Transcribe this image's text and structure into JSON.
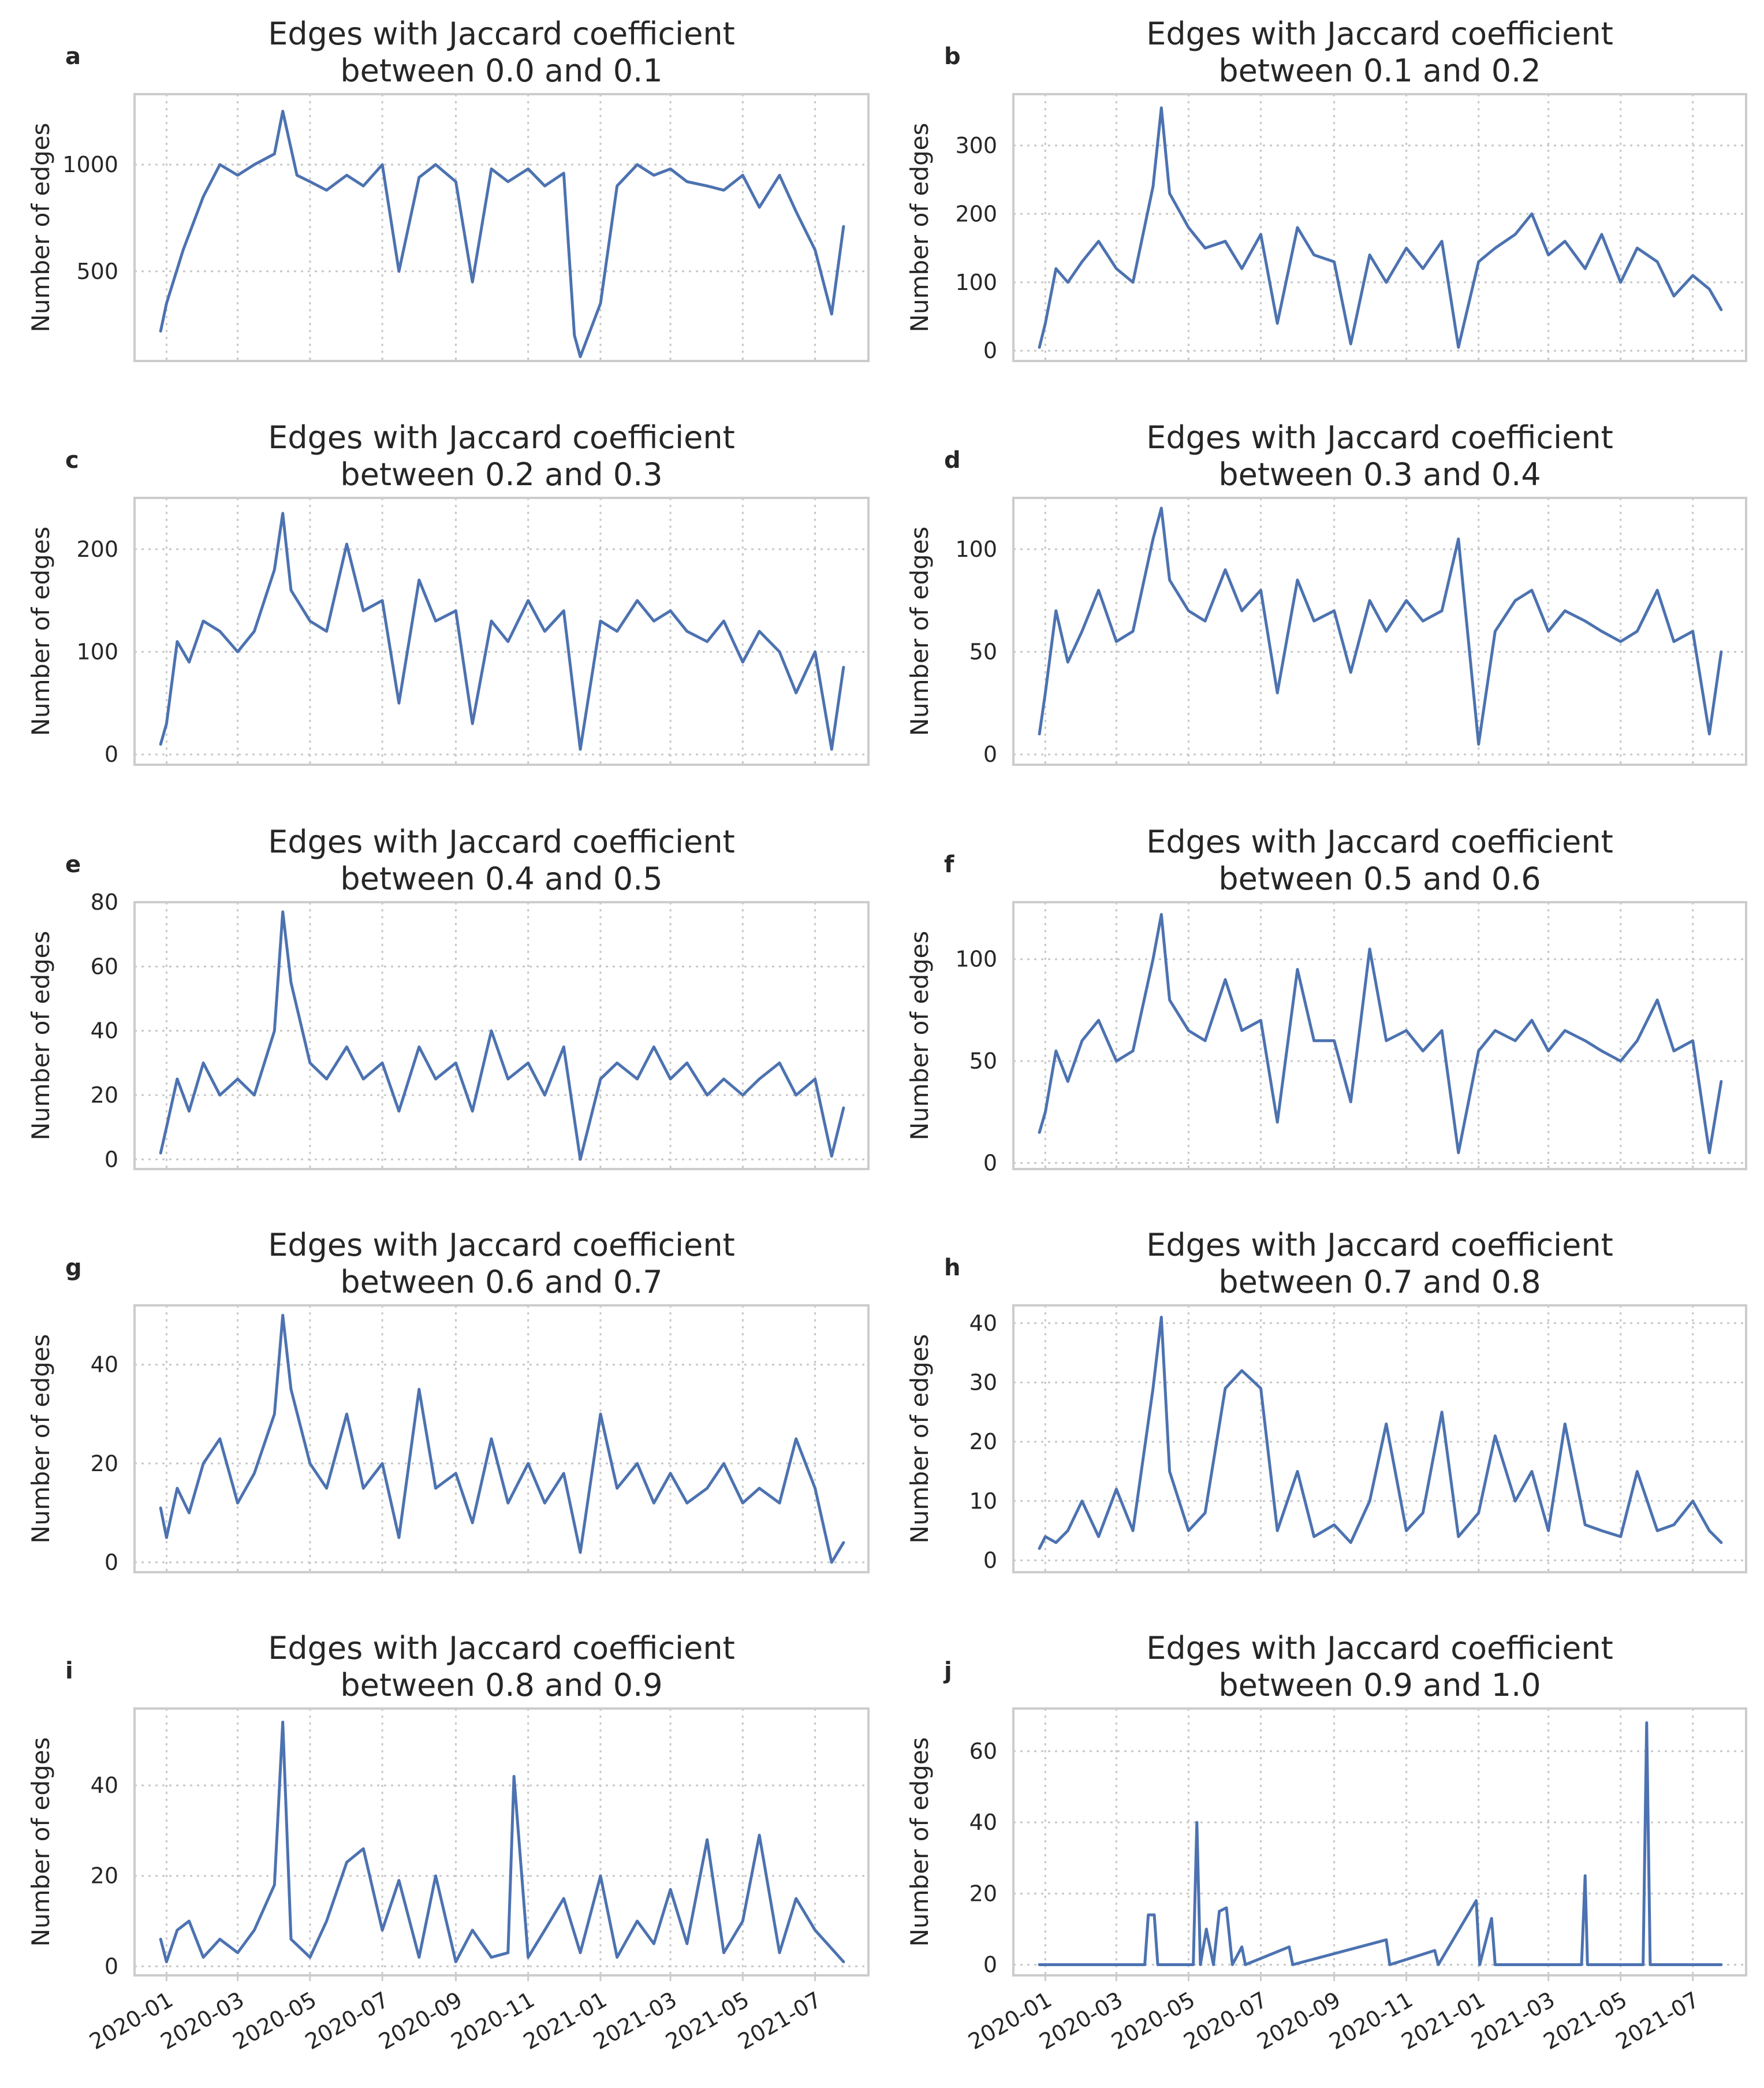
{
  "chart_data": [
    {
      "panel": "a",
      "type": "line",
      "title": [
        "Edges with Jaccard coefficient",
        "between 0.0 and 0.1"
      ],
      "ylabel": "Number of edges",
      "ylim": [
        80,
        1330
      ],
      "yticks": [
        500,
        1000
      ],
      "x": [
        "2019-12-27",
        "2020-01-01",
        "2020-01-15",
        "2020-02-01",
        "2020-02-15",
        "2020-03-01",
        "2020-03-15",
        "2020-04-01",
        "2020-04-08",
        "2020-04-20",
        "2020-05-01",
        "2020-05-15",
        "2020-06-01",
        "2020-06-15",
        "2020-07-01",
        "2020-07-15",
        "2020-08-01",
        "2020-08-15",
        "2020-09-01",
        "2020-09-15",
        "2020-10-01",
        "2020-10-15",
        "2020-11-01",
        "2020-11-15",
        "2020-12-01",
        "2020-12-10",
        "2020-12-15",
        "2021-01-01",
        "2021-01-15",
        "2021-02-01",
        "2021-02-15",
        "2021-03-01",
        "2021-03-15",
        "2021-04-01",
        "2021-04-15",
        "2021-05-01",
        "2021-05-15",
        "2021-06-01",
        "2021-06-15",
        "2021-07-01",
        "2021-07-15",
        "2021-07-25"
      ],
      "values": [
        220,
        350,
        600,
        850,
        1000,
        950,
        1000,
        1050,
        1250,
        950,
        920,
        880,
        950,
        900,
        1000,
        500,
        940,
        1000,
        920,
        450,
        980,
        920,
        980,
        900,
        960,
        200,
        100,
        350,
        900,
        1000,
        950,
        980,
        920,
        900,
        880,
        950,
        800,
        950,
        780,
        600,
        300,
        710
      ]
    },
    {
      "panel": "b",
      "type": "line",
      "title": [
        "Edges with Jaccard coefficient",
        "between 0.1 and 0.2"
      ],
      "ylabel": "Number of edges",
      "ylim": [
        -15,
        375
      ],
      "yticks": [
        0,
        100,
        200,
        300
      ],
      "x": [
        "2019-12-27",
        "2020-01-01",
        "2020-01-10",
        "2020-01-20",
        "2020-02-01",
        "2020-02-15",
        "2020-03-01",
        "2020-03-15",
        "2020-04-01",
        "2020-04-08",
        "2020-04-15",
        "2020-05-01",
        "2020-05-15",
        "2020-06-01",
        "2020-06-15",
        "2020-07-01",
        "2020-07-15",
        "2020-08-01",
        "2020-08-15",
        "2020-09-01",
        "2020-09-15",
        "2020-10-01",
        "2020-10-15",
        "2020-11-01",
        "2020-11-15",
        "2020-12-01",
        "2020-12-15",
        "2021-01-01",
        "2021-01-15",
        "2021-02-01",
        "2021-02-15",
        "2021-03-01",
        "2021-03-15",
        "2021-04-01",
        "2021-04-15",
        "2021-05-01",
        "2021-05-15",
        "2021-06-01",
        "2021-06-15",
        "2021-07-01",
        "2021-07-15",
        "2021-07-25"
      ],
      "values": [
        5,
        40,
        120,
        100,
        130,
        160,
        120,
        100,
        240,
        355,
        230,
        180,
        150,
        160,
        120,
        170,
        40,
        180,
        140,
        130,
        10,
        140,
        100,
        150,
        120,
        160,
        5,
        130,
        150,
        170,
        200,
        140,
        160,
        120,
        170,
        100,
        150,
        130,
        80,
        110,
        90,
        60
      ]
    },
    {
      "panel": "c",
      "type": "line",
      "title": [
        "Edges with Jaccard coefficient",
        "between 0.2 and 0.3"
      ],
      "ylabel": "Number of edges",
      "ylim": [
        -10,
        250
      ],
      "yticks": [
        0,
        100,
        200
      ],
      "x": [
        "2019-12-27",
        "2020-01-01",
        "2020-01-10",
        "2020-01-20",
        "2020-02-01",
        "2020-02-15",
        "2020-03-01",
        "2020-03-15",
        "2020-04-01",
        "2020-04-08",
        "2020-04-15",
        "2020-05-01",
        "2020-05-15",
        "2020-06-01",
        "2020-06-15",
        "2020-07-01",
        "2020-07-15",
        "2020-08-01",
        "2020-08-15",
        "2020-09-01",
        "2020-09-15",
        "2020-10-01",
        "2020-10-15",
        "2020-11-01",
        "2020-11-15",
        "2020-12-01",
        "2020-12-15",
        "2021-01-01",
        "2021-01-15",
        "2021-02-01",
        "2021-02-15",
        "2021-03-01",
        "2021-03-15",
        "2021-04-01",
        "2021-04-15",
        "2021-05-01",
        "2021-05-15",
        "2021-06-01",
        "2021-06-15",
        "2021-07-01",
        "2021-07-15",
        "2021-07-25"
      ],
      "values": [
        10,
        30,
        110,
        90,
        130,
        120,
        100,
        120,
        180,
        235,
        160,
        130,
        120,
        205,
        140,
        150,
        50,
        170,
        130,
        140,
        30,
        130,
        110,
        150,
        120,
        140,
        5,
        130,
        120,
        150,
        130,
        140,
        120,
        110,
        130,
        90,
        120,
        100,
        60,
        100,
        5,
        85
      ]
    },
    {
      "panel": "d",
      "type": "line",
      "title": [
        "Edges with Jaccard coefficient",
        "between 0.3 and 0.4"
      ],
      "ylabel": "Number of edges",
      "ylim": [
        -5,
        125
      ],
      "yticks": [
        0,
        50,
        100
      ],
      "x": [
        "2019-12-27",
        "2020-01-01",
        "2020-01-10",
        "2020-01-20",
        "2020-02-01",
        "2020-02-15",
        "2020-03-01",
        "2020-03-15",
        "2020-04-01",
        "2020-04-08",
        "2020-04-15",
        "2020-05-01",
        "2020-05-15",
        "2020-06-01",
        "2020-06-15",
        "2020-07-01",
        "2020-07-15",
        "2020-08-01",
        "2020-08-15",
        "2020-09-01",
        "2020-09-15",
        "2020-10-01",
        "2020-10-15",
        "2020-11-01",
        "2020-11-15",
        "2020-12-01",
        "2020-12-15",
        "2021-01-01",
        "2021-01-15",
        "2021-02-01",
        "2021-02-15",
        "2021-03-01",
        "2021-03-15",
        "2021-04-01",
        "2021-04-15",
        "2021-05-01",
        "2021-05-15",
        "2021-06-01",
        "2021-06-15",
        "2021-07-01",
        "2021-07-15",
        "2021-07-25"
      ],
      "values": [
        10,
        30,
        70,
        45,
        60,
        80,
        55,
        60,
        105,
        120,
        85,
        70,
        65,
        90,
        70,
        80,
        30,
        85,
        65,
        70,
        40,
        75,
        60,
        75,
        65,
        70,
        105,
        5,
        60,
        75,
        80,
        60,
        70,
        65,
        60,
        55,
        60,
        80,
        55,
        60,
        10,
        50
      ]
    },
    {
      "panel": "e",
      "type": "line",
      "title": [
        "Edges with Jaccard coefficient",
        "between 0.4 and 0.5"
      ],
      "ylabel": "Number of edges",
      "ylim": [
        -3,
        80
      ],
      "yticks": [
        0,
        20,
        40,
        60,
        80
      ],
      "x": [
        "2019-12-27",
        "2020-01-01",
        "2020-01-10",
        "2020-01-20",
        "2020-02-01",
        "2020-02-15",
        "2020-03-01",
        "2020-03-15",
        "2020-04-01",
        "2020-04-08",
        "2020-04-15",
        "2020-05-01",
        "2020-05-15",
        "2020-06-01",
        "2020-06-15",
        "2020-07-01",
        "2020-07-15",
        "2020-08-01",
        "2020-08-15",
        "2020-09-01",
        "2020-09-15",
        "2020-10-01",
        "2020-10-15",
        "2020-11-01",
        "2020-11-15",
        "2020-12-01",
        "2020-12-15",
        "2021-01-01",
        "2021-01-15",
        "2021-02-01",
        "2021-02-15",
        "2021-03-01",
        "2021-03-15",
        "2021-04-01",
        "2021-04-15",
        "2021-05-01",
        "2021-05-15",
        "2021-06-01",
        "2021-06-15",
        "2021-07-01",
        "2021-07-15",
        "2021-07-25"
      ],
      "values": [
        2,
        10,
        25,
        15,
        30,
        20,
        25,
        20,
        40,
        77,
        55,
        30,
        25,
        35,
        25,
        30,
        15,
        35,
        25,
        30,
        15,
        40,
        25,
        30,
        20,
        35,
        0,
        25,
        30,
        25,
        35,
        25,
        30,
        20,
        25,
        20,
        25,
        30,
        20,
        25,
        1,
        16
      ]
    },
    {
      "panel": "f",
      "type": "line",
      "title": [
        "Edges with Jaccard coefficient",
        "between 0.5 and 0.6"
      ],
      "ylabel": "Number of edges",
      "ylim": [
        -3,
        128
      ],
      "yticks": [
        0,
        50,
        100
      ],
      "x": [
        "2019-12-27",
        "2020-01-01",
        "2020-01-10",
        "2020-01-20",
        "2020-02-01",
        "2020-02-15",
        "2020-03-01",
        "2020-03-15",
        "2020-04-01",
        "2020-04-08",
        "2020-04-15",
        "2020-05-01",
        "2020-05-15",
        "2020-06-01",
        "2020-06-15",
        "2020-07-01",
        "2020-07-15",
        "2020-08-01",
        "2020-08-15",
        "2020-09-01",
        "2020-09-15",
        "2020-10-01",
        "2020-10-15",
        "2020-11-01",
        "2020-11-15",
        "2020-12-01",
        "2020-12-15",
        "2021-01-01",
        "2021-01-15",
        "2021-02-01",
        "2021-02-15",
        "2021-03-01",
        "2021-03-15",
        "2021-04-01",
        "2021-04-15",
        "2021-05-01",
        "2021-05-15",
        "2021-06-01",
        "2021-06-15",
        "2021-07-01",
        "2021-07-15",
        "2021-07-25"
      ],
      "values": [
        15,
        25,
        55,
        40,
        60,
        70,
        50,
        55,
        100,
        122,
        80,
        65,
        60,
        90,
        65,
        70,
        20,
        95,
        60,
        60,
        30,
        105,
        60,
        65,
        55,
        65,
        5,
        55,
        65,
        60,
        70,
        55,
        65,
        60,
        55,
        50,
        60,
        80,
        55,
        60,
        5,
        40
      ]
    },
    {
      "panel": "g",
      "type": "line",
      "title": [
        "Edges with Jaccard coefficient",
        "between 0.6 and 0.7"
      ],
      "ylabel": "Number of edges",
      "ylim": [
        -2,
        52
      ],
      "yticks": [
        0,
        20,
        40
      ],
      "x": [
        "2019-12-27",
        "2020-01-01",
        "2020-01-10",
        "2020-01-20",
        "2020-02-01",
        "2020-02-15",
        "2020-03-01",
        "2020-03-15",
        "2020-04-01",
        "2020-04-08",
        "2020-04-15",
        "2020-05-01",
        "2020-05-15",
        "2020-06-01",
        "2020-06-15",
        "2020-07-01",
        "2020-07-15",
        "2020-08-01",
        "2020-08-15",
        "2020-09-01",
        "2020-09-15",
        "2020-10-01",
        "2020-10-15",
        "2020-11-01",
        "2020-11-15",
        "2020-12-01",
        "2020-12-15",
        "2021-01-01",
        "2021-01-15",
        "2021-02-01",
        "2021-02-15",
        "2021-03-01",
        "2021-03-15",
        "2021-04-01",
        "2021-04-15",
        "2021-05-01",
        "2021-05-15",
        "2021-06-01",
        "2021-06-15",
        "2021-07-01",
        "2021-07-15",
        "2021-07-25"
      ],
      "values": [
        11,
        5,
        15,
        10,
        20,
        25,
        12,
        18,
        30,
        50,
        35,
        20,
        15,
        30,
        15,
        20,
        5,
        35,
        15,
        18,
        8,
        25,
        12,
        20,
        12,
        18,
        2,
        30,
        15,
        20,
        12,
        18,
        12,
        15,
        20,
        12,
        15,
        12,
        25,
        15,
        0,
        4
      ]
    },
    {
      "panel": "h",
      "type": "line",
      "title": [
        "Edges with Jaccard coefficient",
        "between 0.7 and 0.8"
      ],
      "ylabel": "Number of edges",
      "ylim": [
        -2,
        43
      ],
      "yticks": [
        0,
        10,
        20,
        30,
        40
      ],
      "x": [
        "2019-12-27",
        "2020-01-01",
        "2020-01-10",
        "2020-01-20",
        "2020-02-01",
        "2020-02-15",
        "2020-03-01",
        "2020-03-15",
        "2020-04-01",
        "2020-04-08",
        "2020-04-15",
        "2020-05-01",
        "2020-05-15",
        "2020-06-01",
        "2020-06-15",
        "2020-07-01",
        "2020-07-15",
        "2020-08-01",
        "2020-08-15",
        "2020-09-01",
        "2020-09-15",
        "2020-10-01",
        "2020-10-15",
        "2020-11-01",
        "2020-11-15",
        "2020-12-01",
        "2020-12-15",
        "2021-01-01",
        "2021-01-15",
        "2021-02-01",
        "2021-02-15",
        "2021-03-01",
        "2021-03-15",
        "2021-04-01",
        "2021-04-15",
        "2021-05-01",
        "2021-05-15",
        "2021-06-01",
        "2021-06-15",
        "2021-07-01",
        "2021-07-15",
        "2021-07-25"
      ],
      "values": [
        2,
        4,
        3,
        5,
        10,
        4,
        12,
        5,
        29,
        41,
        15,
        5,
        8,
        29,
        32,
        29,
        5,
        15,
        4,
        6,
        3,
        10,
        23,
        5,
        8,
        25,
        4,
        8,
        21,
        10,
        15,
        5,
        23,
        6,
        5,
        4,
        15,
        5,
        6,
        10,
        5,
        3
      ]
    },
    {
      "panel": "i",
      "type": "line",
      "title": [
        "Edges with Jaccard coefficient",
        "between 0.8 and 0.9"
      ],
      "ylabel": "Number of edges",
      "ylim": [
        -2,
        57
      ],
      "yticks": [
        0,
        20,
        40
      ],
      "x": [
        "2019-12-27",
        "2020-01-01",
        "2020-01-10",
        "2020-01-20",
        "2020-02-01",
        "2020-02-15",
        "2020-03-01",
        "2020-03-15",
        "2020-04-01",
        "2020-04-08",
        "2020-04-15",
        "2020-05-01",
        "2020-05-15",
        "2020-06-01",
        "2020-06-15",
        "2020-07-01",
        "2020-07-15",
        "2020-08-01",
        "2020-08-15",
        "2020-09-01",
        "2020-09-15",
        "2020-10-01",
        "2020-10-15",
        "2020-10-20",
        "2020-11-01",
        "2020-11-15",
        "2020-12-01",
        "2020-12-15",
        "2021-01-01",
        "2021-01-15",
        "2021-02-01",
        "2021-02-15",
        "2021-03-01",
        "2021-03-15",
        "2021-04-01",
        "2021-04-15",
        "2021-05-01",
        "2021-05-15",
        "2021-06-01",
        "2021-06-15",
        "2021-07-01",
        "2021-07-25"
      ],
      "values": [
        6,
        1,
        8,
        10,
        2,
        6,
        3,
        8,
        18,
        54,
        6,
        2,
        10,
        23,
        26,
        8,
        19,
        2,
        20,
        1,
        8,
        2,
        3,
        42,
        2,
        8,
        15,
        3,
        20,
        2,
        10,
        5,
        17,
        5,
        28,
        3,
        10,
        29,
        3,
        15,
        8,
        1
      ]
    },
    {
      "panel": "j",
      "type": "line",
      "title": [
        "Edges with Jaccard coefficient",
        "between 0.9 and 1.0"
      ],
      "ylabel": "Number of edges",
      "ylim": [
        -3,
        72
      ],
      "yticks": [
        0,
        20,
        40,
        60
      ],
      "x": [
        "2019-12-27",
        "2020-03-25",
        "2020-03-28",
        "2020-04-02",
        "2020-04-05",
        "2020-05-05",
        "2020-05-08",
        "2020-05-11",
        "2020-05-16",
        "2020-05-22",
        "2020-05-27",
        "2020-06-02",
        "2020-06-07",
        "2020-06-15",
        "2020-06-18",
        "2020-07-25",
        "2020-07-28",
        "2020-10-15",
        "2020-10-18",
        "2020-11-25",
        "2020-11-28",
        "2020-12-30",
        "2021-01-02",
        "2021-01-12",
        "2021-01-15",
        "2021-03-29",
        "2021-04-01",
        "2021-04-03",
        "2021-05-20",
        "2021-05-23",
        "2021-05-26",
        "2021-07-25"
      ],
      "values": [
        0,
        0,
        14,
        14,
        0,
        0,
        40,
        0,
        10,
        0,
        15,
        16,
        0,
        5,
        0,
        5,
        0,
        7,
        0,
        4,
        0,
        18,
        0,
        13,
        0,
        0,
        25,
        0,
        0,
        68,
        0,
        0
      ]
    }
  ],
  "x_tick_labels": [
    "2020-01",
    "2020-03",
    "2020-05",
    "2020-07",
    "2020-09",
    "2020-11",
    "2021-01",
    "2021-03",
    "2021-05",
    "2021-07"
  ]
}
